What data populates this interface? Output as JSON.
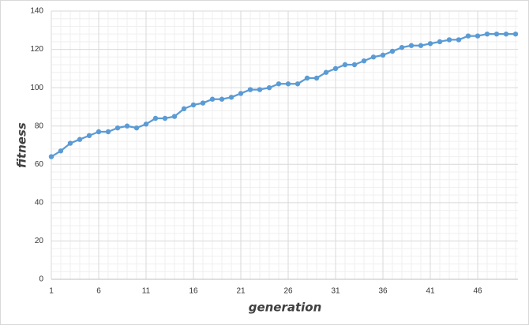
{
  "chart_data": {
    "type": "line",
    "x_label": "generation",
    "y_label": "fitness",
    "x": [
      1,
      2,
      3,
      4,
      5,
      6,
      7,
      8,
      9,
      10,
      11,
      12,
      13,
      14,
      15,
      16,
      17,
      18,
      19,
      20,
      21,
      22,
      23,
      24,
      25,
      26,
      27,
      28,
      29,
      30,
      31,
      32,
      33,
      34,
      35,
      36,
      37,
      38,
      39,
      40,
      41,
      42,
      43,
      44,
      45,
      46,
      47,
      48,
      49,
      50
    ],
    "series": [
      {
        "color": "#5b9bd5",
        "values": [
          64,
          67,
          71,
          73,
          75,
          77,
          77,
          79,
          80,
          79,
          81,
          84,
          84,
          85,
          89,
          91,
          92,
          94,
          94,
          95,
          97,
          99,
          99,
          100,
          102,
          102,
          102,
          105,
          105,
          108,
          110,
          112,
          112,
          114,
          116,
          117,
          119,
          121,
          122,
          122,
          123,
          124,
          125,
          125,
          127,
          127,
          128,
          128,
          128,
          128
        ]
      }
    ],
    "xlim": [
      1,
      50
    ],
    "xticks": [
      1,
      6,
      11,
      16,
      21,
      26,
      31,
      36,
      41,
      46
    ],
    "ylim": [
      0,
      140
    ],
    "yticks": [
      0,
      20,
      40,
      60,
      80,
      100,
      120,
      140
    ],
    "grid": true
  }
}
